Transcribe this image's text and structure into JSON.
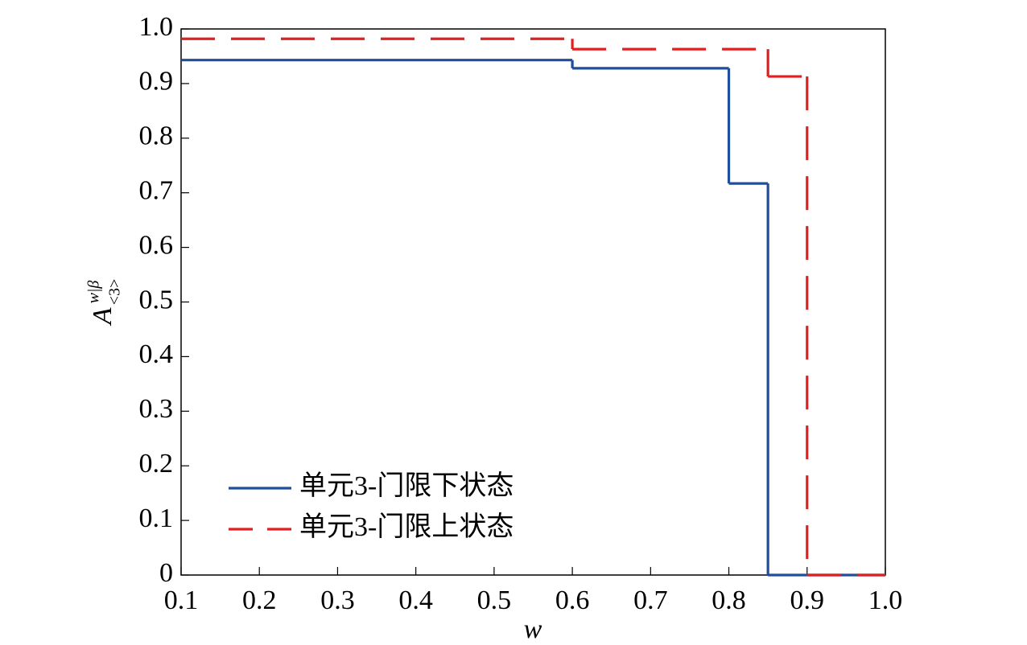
{
  "chart_data": {
    "type": "step",
    "xlabel": "w",
    "ylabel": "A",
    "ylabel_sup": "w|β",
    "ylabel_sub": "<3>",
    "xlim": [
      0.1,
      1.0
    ],
    "ylim": [
      0,
      1.0
    ],
    "xticks": [
      0.1,
      0.2,
      0.3,
      0.4,
      0.5,
      0.6,
      0.7,
      0.8,
      0.9,
      {
        "value": 1.0,
        "label": "1.0"
      }
    ],
    "yticks": [
      0,
      0.1,
      0.2,
      0.3,
      0.4,
      0.5,
      0.6,
      0.7,
      0.8,
      0.9,
      {
        "value": 1.0,
        "label": "1.0"
      }
    ],
    "legend": "lower left",
    "series": [
      {
        "name": "单元3-门限下状态",
        "color": "#1f4e9c",
        "dash": false,
        "x": [
          0.1,
          0.6,
          0.8,
          0.85
        ],
        "values": [
          0.943,
          0.928,
          0.717,
          0
        ]
      },
      {
        "name": "单元3-门限上状态",
        "color": "#e02020",
        "dash": true,
        "x": [
          0.1,
          0.6,
          0.85,
          0.9
        ],
        "values": [
          0.982,
          0.963,
          0.913,
          0
        ]
      }
    ]
  }
}
